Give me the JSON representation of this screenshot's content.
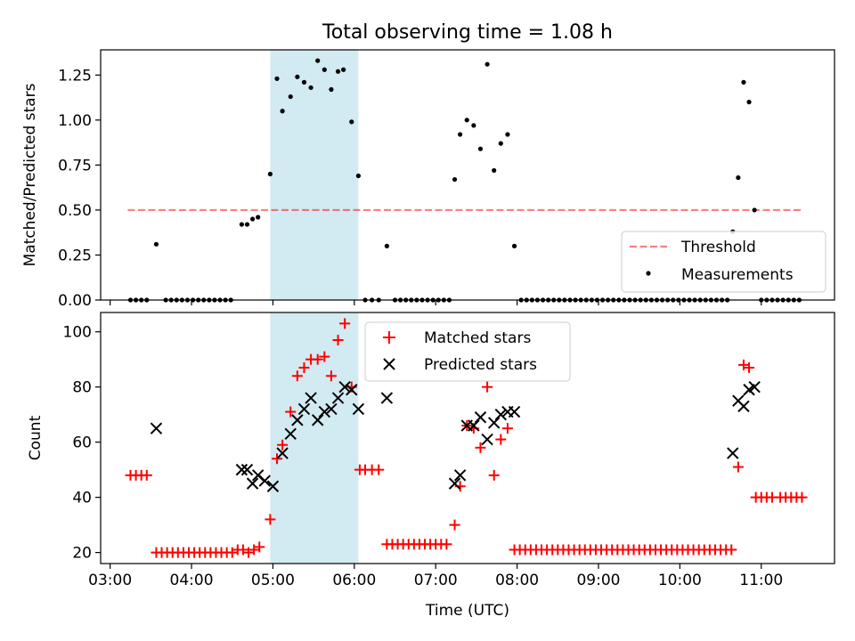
{
  "title": "Total observing time = 1.08 h",
  "colors": {
    "highlight": "#add8e6",
    "threshold": "#ff0000",
    "matched": "#ff0000",
    "predicted": "#000000",
    "measurement": "#000000"
  },
  "chart_data": [
    {
      "type": "scatter",
      "ylabel": "Matched/Predicted stars",
      "ylim": [
        0,
        1.39
      ],
      "yticks": [
        0.0,
        0.25,
        0.5,
        0.75,
        1.0,
        1.25
      ],
      "ytick_labels": [
        "0.00",
        "0.25",
        "0.50",
        "0.75",
        "1.00",
        "1.25"
      ],
      "xlim": [
        "02:53",
        "11:54"
      ],
      "highlight_span": [
        "04:58",
        "06:03"
      ],
      "legend_position": "lower-right",
      "threshold": {
        "name": "Threshold",
        "value": 0.5,
        "x": [
          "03:13",
          "11:30"
        ]
      },
      "series": [
        {
          "name": "Measurements",
          "points": [
            [
              "03:15",
              0
            ],
            [
              "03:19",
              0
            ],
            [
              "03:23",
              0
            ],
            [
              "03:27",
              0
            ],
            [
              "03:34",
              0.31
            ],
            [
              "03:41",
              0
            ],
            [
              "03:45",
              0
            ],
            [
              "03:49",
              0
            ],
            [
              "03:53",
              0
            ],
            [
              "03:57",
              0
            ],
            [
              "04:01",
              0
            ],
            [
              "04:05",
              0
            ],
            [
              "04:09",
              0
            ],
            [
              "04:13",
              0
            ],
            [
              "04:17",
              0
            ],
            [
              "04:21",
              0
            ],
            [
              "04:25",
              0
            ],
            [
              "04:29",
              0
            ],
            [
              "04:37",
              0.42
            ],
            [
              "04:41",
              0.42
            ],
            [
              "04:45",
              0.45
            ],
            [
              "04:49",
              0.46
            ],
            [
              "04:58",
              0.7
            ],
            [
              "05:03",
              1.23
            ],
            [
              "05:07",
              1.05
            ],
            [
              "05:13",
              1.13
            ],
            [
              "05:18",
              1.24
            ],
            [
              "05:23",
              1.21
            ],
            [
              "05:28",
              1.18
            ],
            [
              "05:33",
              1.33
            ],
            [
              "05:38",
              1.28
            ],
            [
              "05:43",
              1.17
            ],
            [
              "05:48",
              1.27
            ],
            [
              "05:52",
              1.28
            ],
            [
              "05:58",
              0.99
            ],
            [
              "06:03",
              0.69
            ],
            [
              "06:08",
              0
            ],
            [
              "06:13",
              0
            ],
            [
              "06:18",
              0
            ],
            [
              "06:24",
              0.3
            ],
            [
              "06:30",
              0
            ],
            [
              "06:34",
              0
            ],
            [
              "06:38",
              0
            ],
            [
              "06:42",
              0
            ],
            [
              "06:46",
              0
            ],
            [
              "06:50",
              0
            ],
            [
              "06:54",
              0
            ],
            [
              "06:58",
              0
            ],
            [
              "07:02",
              0
            ],
            [
              "07:06",
              0
            ],
            [
              "07:10",
              0
            ],
            [
              "07:14",
              0.67
            ],
            [
              "07:18",
              0.92
            ],
            [
              "07:23",
              1.0
            ],
            [
              "07:28",
              0.97
            ],
            [
              "07:33",
              0.84
            ],
            [
              "07:38",
              1.31
            ],
            [
              "07:43",
              0.72
            ],
            [
              "07:48",
              0.87
            ],
            [
              "07:53",
              0.92
            ],
            [
              "07:58",
              0.3
            ],
            [
              "08:03",
              0
            ],
            [
              "08:07",
              0
            ],
            [
              "08:11",
              0
            ],
            [
              "08:15",
              0
            ],
            [
              "08:19",
              0
            ],
            [
              "08:23",
              0
            ],
            [
              "08:27",
              0
            ],
            [
              "08:31",
              0
            ],
            [
              "08:35",
              0
            ],
            [
              "08:39",
              0
            ],
            [
              "08:43",
              0
            ],
            [
              "08:47",
              0
            ],
            [
              "08:51",
              0
            ],
            [
              "08:55",
              0
            ],
            [
              "08:59",
              0
            ],
            [
              "09:03",
              0
            ],
            [
              "09:07",
              0
            ],
            [
              "09:11",
              0
            ],
            [
              "09:15",
              0
            ],
            [
              "09:19",
              0
            ],
            [
              "09:23",
              0
            ],
            [
              "09:27",
              0
            ],
            [
              "09:31",
              0
            ],
            [
              "09:35",
              0
            ],
            [
              "09:39",
              0
            ],
            [
              "09:43",
              0
            ],
            [
              "09:47",
              0
            ],
            [
              "09:51",
              0
            ],
            [
              "09:55",
              0
            ],
            [
              "09:59",
              0
            ],
            [
              "10:03",
              0
            ],
            [
              "10:07",
              0
            ],
            [
              "10:11",
              0
            ],
            [
              "10:15",
              0
            ],
            [
              "10:19",
              0
            ],
            [
              "10:23",
              0
            ],
            [
              "10:27",
              0
            ],
            [
              "10:31",
              0
            ],
            [
              "10:35",
              0
            ],
            [
              "10:39",
              0.38
            ],
            [
              "10:43",
              0.68
            ],
            [
              "10:47",
              1.21
            ],
            [
              "10:51",
              1.1
            ],
            [
              "10:55",
              0.5
            ],
            [
              "11:00",
              0
            ],
            [
              "11:04",
              0
            ],
            [
              "11:08",
              0
            ],
            [
              "11:12",
              0
            ],
            [
              "11:16",
              0
            ],
            [
              "11:20",
              0
            ],
            [
              "11:24",
              0
            ],
            [
              "11:28",
              0
            ]
          ]
        }
      ]
    },
    {
      "type": "scatter",
      "xlabel": "Time (UTC)",
      "ylabel": "Count",
      "ylim": [
        16,
        107
      ],
      "yticks": [
        20,
        40,
        60,
        80,
        100
      ],
      "xlim": [
        "02:53",
        "11:54"
      ],
      "xticks": [
        "03:00",
        "04:00",
        "05:00",
        "06:00",
        "07:00",
        "08:00",
        "09:00",
        "10:00",
        "11:00"
      ],
      "highlight_span": [
        "04:58",
        "06:03"
      ],
      "legend_position": "top-center",
      "series": [
        {
          "name": "Matched stars",
          "points": [
            [
              "03:15",
              48
            ],
            [
              "03:19",
              48
            ],
            [
              "03:23",
              48
            ],
            [
              "03:27",
              48
            ],
            [
              "03:34",
              20
            ],
            [
              "03:38",
              20
            ],
            [
              "03:42",
              20
            ],
            [
              "03:46",
              20
            ],
            [
              "03:50",
              20
            ],
            [
              "03:54",
              20
            ],
            [
              "03:58",
              20
            ],
            [
              "04:02",
              20
            ],
            [
              "04:06",
              20
            ],
            [
              "04:10",
              20
            ],
            [
              "04:14",
              20
            ],
            [
              "04:18",
              20
            ],
            [
              "04:22",
              20
            ],
            [
              "04:26",
              20
            ],
            [
              "04:30",
              20
            ],
            [
              "04:34",
              21
            ],
            [
              "04:38",
              21
            ],
            [
              "04:42",
              20
            ],
            [
              "04:46",
              21
            ],
            [
              "04:50",
              22
            ],
            [
              "04:58",
              32
            ],
            [
              "05:03",
              54
            ],
            [
              "05:07",
              59
            ],
            [
              "05:13",
              71
            ],
            [
              "05:18",
              84
            ],
            [
              "05:23",
              87
            ],
            [
              "05:28",
              90
            ],
            [
              "05:33",
              90
            ],
            [
              "05:38",
              91
            ],
            [
              "05:43",
              84
            ],
            [
              "05:48",
              97
            ],
            [
              "05:53",
              103
            ],
            [
              "05:58",
              80
            ],
            [
              "06:04",
              50
            ],
            [
              "06:08",
              50
            ],
            [
              "06:13",
              50
            ],
            [
              "06:18",
              50
            ],
            [
              "06:24",
              23
            ],
            [
              "06:28",
              23
            ],
            [
              "06:32",
              23
            ],
            [
              "06:36",
              23
            ],
            [
              "06:40",
              23
            ],
            [
              "06:44",
              23
            ],
            [
              "06:48",
              23
            ],
            [
              "06:52",
              23
            ],
            [
              "06:56",
              23
            ],
            [
              "07:00",
              23
            ],
            [
              "07:04",
              23
            ],
            [
              "07:08",
              23
            ],
            [
              "07:14",
              30
            ],
            [
              "07:18",
              44
            ],
            [
              "07:23",
              66
            ],
            [
              "07:28",
              65
            ],
            [
              "07:33",
              58
            ],
            [
              "07:38",
              80
            ],
            [
              "07:43",
              48
            ],
            [
              "07:48",
              61
            ],
            [
              "07:53",
              65
            ],
            [
              "07:58",
              21
            ],
            [
              "08:02",
              21
            ],
            [
              "08:06",
              21
            ],
            [
              "08:10",
              21
            ],
            [
              "08:14",
              21
            ],
            [
              "08:18",
              21
            ],
            [
              "08:22",
              21
            ],
            [
              "08:26",
              21
            ],
            [
              "08:30",
              21
            ],
            [
              "08:34",
              21
            ],
            [
              "08:38",
              21
            ],
            [
              "08:42",
              21
            ],
            [
              "08:46",
              21
            ],
            [
              "08:50",
              21
            ],
            [
              "08:54",
              21
            ],
            [
              "08:58",
              21
            ],
            [
              "09:02",
              21
            ],
            [
              "09:06",
              21
            ],
            [
              "09:10",
              21
            ],
            [
              "09:14",
              21
            ],
            [
              "09:18",
              21
            ],
            [
              "09:22",
              21
            ],
            [
              "09:26",
              21
            ],
            [
              "09:30",
              21
            ],
            [
              "09:34",
              21
            ],
            [
              "09:38",
              21
            ],
            [
              "09:42",
              21
            ],
            [
              "09:46",
              21
            ],
            [
              "09:50",
              21
            ],
            [
              "09:54",
              21
            ],
            [
              "09:58",
              21
            ],
            [
              "10:02",
              21
            ],
            [
              "10:06",
              21
            ],
            [
              "10:10",
              21
            ],
            [
              "10:14",
              21
            ],
            [
              "10:18",
              21
            ],
            [
              "10:22",
              21
            ],
            [
              "10:26",
              21
            ],
            [
              "10:30",
              21
            ],
            [
              "10:34",
              21
            ],
            [
              "10:38",
              21
            ],
            [
              "10:43",
              51
            ],
            [
              "10:47",
              88
            ],
            [
              "10:51",
              87
            ],
            [
              "10:56",
              40
            ],
            [
              "11:00",
              40
            ],
            [
              "11:04",
              40
            ],
            [
              "11:08",
              40
            ],
            [
              "11:14",
              40
            ],
            [
              "11:18",
              40
            ],
            [
              "11:22",
              40
            ],
            [
              "11:26",
              40
            ],
            [
              "11:30",
              40
            ]
          ]
        },
        {
          "name": "Predicted stars",
          "points": [
            [
              "03:34",
              65
            ],
            [
              "04:37",
              50
            ],
            [
              "04:41",
              50
            ],
            [
              "04:45",
              45
            ],
            [
              "04:49",
              48
            ],
            [
              "04:54",
              46
            ],
            [
              "05:00",
              44
            ],
            [
              "05:07",
              56
            ],
            [
              "05:13",
              63
            ],
            [
              "05:18",
              68
            ],
            [
              "05:23",
              72
            ],
            [
              "05:28",
              76
            ],
            [
              "05:33",
              68
            ],
            [
              "05:38",
              71
            ],
            [
              "05:43",
              72
            ],
            [
              "05:48",
              76
            ],
            [
              "05:53",
              80
            ],
            [
              "05:58",
              79
            ],
            [
              "06:03",
              72
            ],
            [
              "06:24",
              76
            ],
            [
              "07:14",
              45
            ],
            [
              "07:18",
              48
            ],
            [
              "07:23",
              66
            ],
            [
              "07:28",
              66
            ],
            [
              "07:33",
              69
            ],
            [
              "07:38",
              61
            ],
            [
              "07:43",
              67
            ],
            [
              "07:48",
              70
            ],
            [
              "07:53",
              71
            ],
            [
              "07:58",
              71
            ],
            [
              "10:39",
              56
            ],
            [
              "10:43",
              75
            ],
            [
              "10:47",
              73
            ],
            [
              "10:51",
              79
            ],
            [
              "10:55",
              80
            ]
          ]
        }
      ]
    }
  ]
}
